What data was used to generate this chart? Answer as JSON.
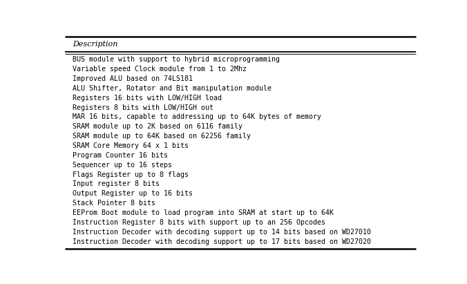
{
  "header": "Description",
  "rows": [
    "BUS module with support to hybrid microprogramming",
    "Variable speed Clock module from 1 to 2Mhz",
    "Improved ALU based on 74LS181",
    "ALU Shifter, Rotator and Bit manipulation module",
    "Registers 16 bits with LOW/HIGH load",
    "Registers 8 bits with LOW/HIGH out",
    "MAR 16 bits, capable to addressing up to 64K bytes of memory",
    "SRAM module up to 2K based on 6116 family",
    "SRAM module up to 64K based on 62256 family",
    "SRAM Core Memory 64 x 1 bits",
    "Program Counter 16 bits",
    "Sequencer up to 16 steps",
    "Flags Register up to 8 flags",
    "Input register 8 bits",
    "Output Register up to 16 bits",
    "Stack Pointer 8 bits",
    "EEProm Boot module to load program into SRAM at start up to 64K",
    "Instruction Register 8 bits with support up to an 256 Opcodes",
    "Instruction Decoder with decoding support up to 14 bits based on WD27010",
    "Instruction Decoder with decoding support up to 17 bits based on WD27020"
  ],
  "bg_color": "#ffffff",
  "table_bg": "#ffffff",
  "header_bg": "#ffffff",
  "border_color_dark": "#1a1a1a",
  "border_color_light": "#888888",
  "text_color": "#000000",
  "font_size": 7.2,
  "header_font_size": 8.0,
  "font_family": "DejaVu Sans Mono",
  "fig_width": 6.76,
  "fig_height": 4.11,
  "dpi": 100
}
